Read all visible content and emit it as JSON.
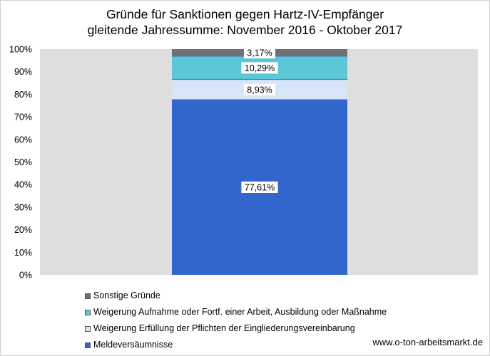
{
  "chart_data": {
    "type": "bar",
    "stacked": true,
    "title": "Gründe für Sanktionen gegen Hartz-IV-Empfänger",
    "subtitle": "gleitende Jahressumme: November 2016 - Oktober 2017",
    "y_ticks": [
      "0%",
      "10%",
      "20%",
      "30%",
      "40%",
      "50%",
      "60%",
      "70%",
      "80%",
      "90%",
      "100%"
    ],
    "ylim": [
      0,
      100
    ],
    "grid": false,
    "legend_position": "bottom-left",
    "series": [
      {
        "name": "Meldeversäumnisse",
        "value": 77.61,
        "label": "77,61%",
        "color": "#3366cc"
      },
      {
        "name": "Weigerung Erfüllung der Pflichten der Eingliederungsvereinbarung",
        "value": 8.93,
        "label": "8,93%",
        "color": "#d6e6f8"
      },
      {
        "name": "Weigerung Aufnahme oder Fortf. einer Arbeit, Ausbildung oder Maßnahme",
        "value": 10.29,
        "label": "10,29%",
        "color": "#5bc6d6"
      },
      {
        "name": "Sonstige Gründe",
        "value": 3.17,
        "label": "3,17%",
        "color": "#717171"
      }
    ]
  },
  "source_text": "www.o-ton-arbeitsmarkt.de"
}
